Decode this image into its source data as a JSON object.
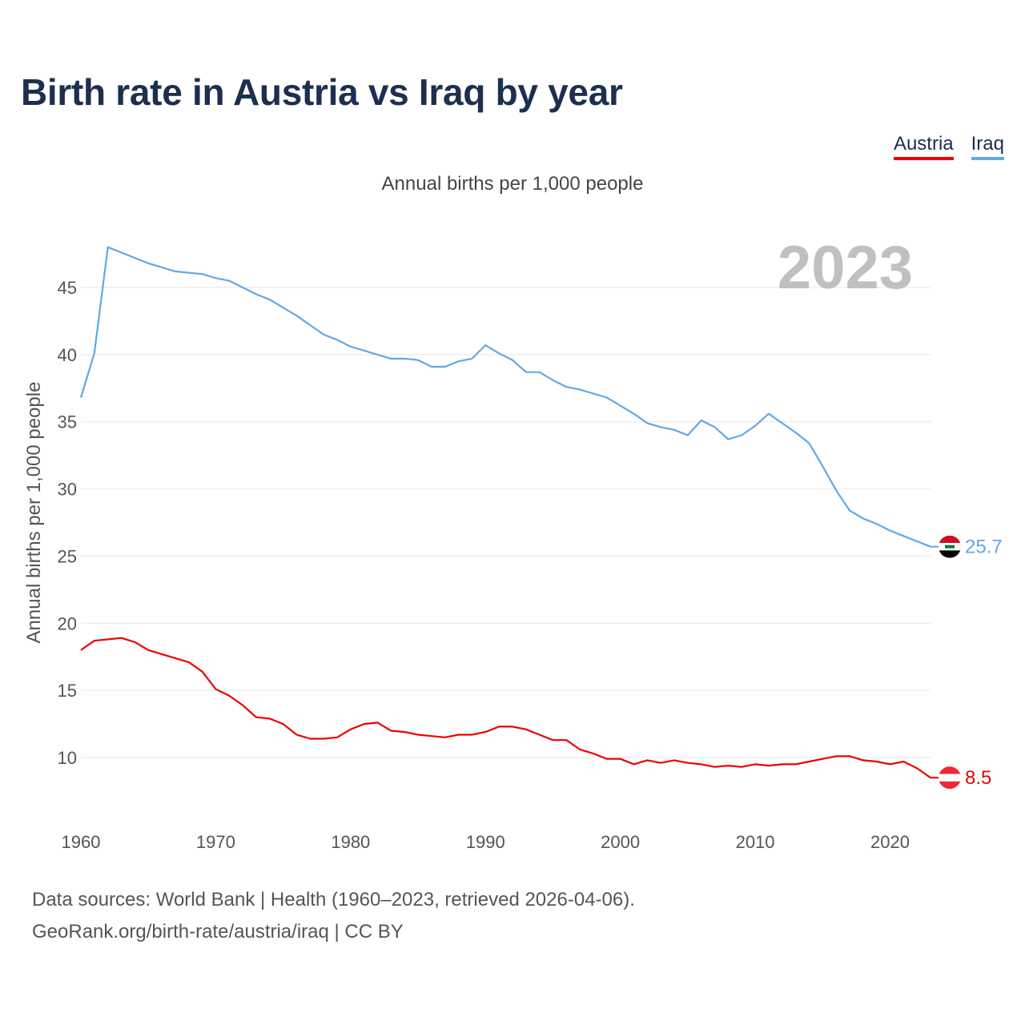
{
  "title": "Birth rate in Austria vs Iraq by year",
  "legend": {
    "austria": "Austria",
    "iraq": "Iraq"
  },
  "subtitle": "Annual births per 1,000 people",
  "year_watermark": "2023",
  "source": {
    "line1": "Data sources: World Bank | Health (1960–2023, retrieved 2026-04-06).",
    "line2": "GeoRank.org/birth-rate/austria/iraq | CC BY"
  },
  "colors": {
    "austria": "#ee0000",
    "iraq": "#62a8e5",
    "grid": "#e6e6e6"
  },
  "chart_data": {
    "type": "line",
    "title": "Birth rate in Austria vs Iraq by year",
    "xlabel": "",
    "ylabel": "Annual births per 1,000 people",
    "xlim": [
      1960,
      2023
    ],
    "ylim": [
      6,
      49
    ],
    "x_ticks": [
      1960,
      1970,
      1980,
      1990,
      2000,
      2010,
      2020
    ],
    "y_ticks": [
      10,
      15,
      20,
      25,
      30,
      35,
      40,
      45
    ],
    "x": [
      1960,
      1961,
      1962,
      1963,
      1964,
      1965,
      1966,
      1967,
      1968,
      1969,
      1970,
      1971,
      1972,
      1973,
      1974,
      1975,
      1976,
      1977,
      1978,
      1979,
      1980,
      1981,
      1982,
      1983,
      1984,
      1985,
      1986,
      1987,
      1988,
      1989,
      1990,
      1991,
      1992,
      1993,
      1994,
      1995,
      1996,
      1997,
      1998,
      1999,
      2000,
      2001,
      2002,
      2003,
      2004,
      2005,
      2006,
      2007,
      2008,
      2009,
      2010,
      2011,
      2012,
      2013,
      2014,
      2015,
      2016,
      2017,
      2018,
      2019,
      2020,
      2021,
      2022,
      2023
    ],
    "series": [
      {
        "name": "Austria",
        "color": "#ee0000",
        "end_label": "8.5",
        "values": [
          18.0,
          18.7,
          18.8,
          18.9,
          18.6,
          18.0,
          17.7,
          17.4,
          17.1,
          16.4,
          15.1,
          14.6,
          13.9,
          13.0,
          12.9,
          12.5,
          11.7,
          11.4,
          11.4,
          11.5,
          12.1,
          12.5,
          12.6,
          12.0,
          11.9,
          11.7,
          11.6,
          11.5,
          11.7,
          11.7,
          11.9,
          12.3,
          12.3,
          12.1,
          11.7,
          11.3,
          11.3,
          10.6,
          10.3,
          9.9,
          9.9,
          9.5,
          9.8,
          9.6,
          9.8,
          9.6,
          9.5,
          9.3,
          9.4,
          9.3,
          9.5,
          9.4,
          9.5,
          9.5,
          9.7,
          9.9,
          10.1,
          10.1,
          9.8,
          9.7,
          9.5,
          9.7,
          9.2,
          8.5
        ]
      },
      {
        "name": "Iraq",
        "color": "#62a8e5",
        "end_label": "25.7",
        "values": [
          36.8,
          40.1,
          48.0,
          47.6,
          47.2,
          46.8,
          46.5,
          46.2,
          46.1,
          46.0,
          45.7,
          45.5,
          45.0,
          44.5,
          44.1,
          43.5,
          42.9,
          42.2,
          41.5,
          41.1,
          40.6,
          40.3,
          40.0,
          39.7,
          39.7,
          39.6,
          39.1,
          39.1,
          39.5,
          39.7,
          40.7,
          40.1,
          39.6,
          38.7,
          38.7,
          38.1,
          37.6,
          37.4,
          37.1,
          36.8,
          36.2,
          35.6,
          34.9,
          34.6,
          34.4,
          34.0,
          35.1,
          34.6,
          33.7,
          34.0,
          34.7,
          35.6,
          34.9,
          34.2,
          33.4,
          31.7,
          29.9,
          28.4,
          27.8,
          27.4,
          26.9,
          26.5,
          26.1,
          25.7
        ]
      }
    ]
  }
}
